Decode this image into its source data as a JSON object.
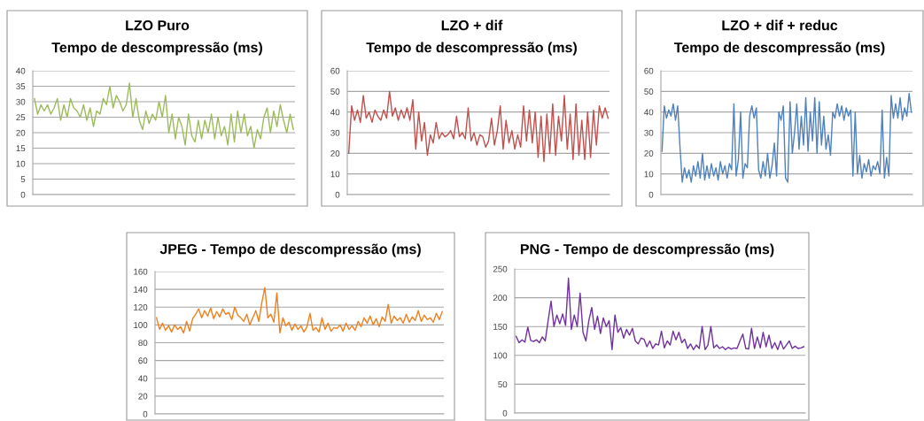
{
  "chart_data": [
    {
      "type": "line",
      "title": "LZO Puro",
      "subtitle": "Tempo de descompressão (ms)",
      "grid": "y",
      "legend": false,
      "ylim": [
        0,
        40
      ],
      "yticks": [
        0,
        5,
        10,
        15,
        20,
        25,
        30,
        35,
        40
      ],
      "categories": [
        null,
        null,
        null,
        null,
        null,
        null,
        null,
        null,
        null,
        null,
        null,
        null,
        null,
        null,
        null,
        null,
        null,
        null,
        null,
        null,
        null,
        null,
        null,
        null,
        null,
        null,
        null,
        null,
        null,
        null,
        null,
        null,
        null,
        null,
        null,
        null,
        null,
        null,
        null,
        null,
        null,
        null,
        null,
        null,
        null,
        null,
        null,
        null,
        null,
        null,
        null,
        null,
        null,
        null,
        null,
        null,
        null,
        null,
        null,
        null,
        null,
        null,
        null,
        null,
        null,
        null,
        null,
        null,
        null,
        null,
        null,
        null,
        null,
        null,
        null,
        null,
        null,
        null,
        null,
        null
      ],
      "series": [
        {
          "color": "#9bbb59",
          "values": [
            31,
            26,
            29,
            27,
            29,
            26,
            28,
            31,
            24,
            29,
            25,
            31,
            28,
            27,
            25,
            29,
            24,
            28,
            22,
            27,
            26,
            31,
            29,
            35,
            28,
            32,
            30,
            27,
            29,
            36,
            25,
            31,
            24,
            21,
            27,
            23,
            26,
            24,
            30,
            25,
            32,
            20,
            26,
            18,
            25,
            22,
            16,
            26,
            19,
            17,
            24,
            18,
            24,
            20,
            26,
            18,
            25,
            19,
            22,
            16,
            26,
            17,
            27,
            20,
            26,
            19,
            22,
            15,
            21,
            18,
            25,
            28,
            20,
            27,
            22,
            29,
            24,
            20,
            26,
            21
          ]
        }
      ]
    },
    {
      "type": "line",
      "title": "LZO + dif",
      "subtitle": "Tempo de descompressão (ms)",
      "grid": "y",
      "legend": false,
      "ylim": [
        0,
        60
      ],
      "yticks": [
        0,
        10,
        20,
        30,
        40,
        50,
        60
      ],
      "categories": [
        null,
        null,
        null,
        null,
        null,
        null,
        null,
        null,
        null,
        null,
        null,
        null,
        null,
        null,
        null,
        null,
        null,
        null,
        null,
        null,
        null,
        null,
        null,
        null,
        null,
        null,
        null,
        null,
        null,
        null,
        null,
        null,
        null,
        null,
        null,
        null,
        null,
        null,
        null,
        null,
        null,
        null,
        null,
        null,
        null,
        null,
        null,
        null,
        null,
        null,
        null,
        null,
        null,
        null,
        null,
        null,
        null,
        null,
        null,
        null,
        null,
        null,
        null,
        null,
        null,
        null,
        null,
        null,
        null,
        null,
        null,
        null,
        null,
        null,
        null,
        null,
        null,
        null,
        null,
        null,
        null,
        null,
        null,
        null,
        null,
        null,
        null,
        null,
        null,
        null
      ],
      "series": [
        {
          "color": "#c0504d",
          "values": [
            20,
            43,
            36,
            41,
            35,
            48,
            37,
            40,
            35,
            41,
            38,
            36,
            41,
            37,
            50,
            38,
            42,
            36,
            41,
            37,
            42,
            36,
            46,
            22,
            40,
            26,
            35,
            19,
            29,
            25,
            35,
            27,
            30,
            28,
            29,
            31,
            27,
            38,
            28,
            30,
            27,
            42,
            26,
            30,
            24,
            29,
            28,
            23,
            26,
            37,
            24,
            31,
            43,
            22,
            36,
            25,
            31,
            22,
            29,
            23,
            43,
            26,
            41,
            25,
            40,
            18,
            38,
            16,
            39,
            20,
            44,
            19,
            38,
            26,
            48,
            22,
            39,
            17,
            44,
            19,
            36,
            17,
            40,
            18,
            41,
            24,
            43,
            37,
            42,
            37
          ]
        }
      ]
    },
    {
      "type": "line",
      "title": "LZO + dif + reduc",
      "subtitle": "Tempo de descompressão (ms)",
      "grid": "y",
      "legend": false,
      "ylim": [
        0,
        60
      ],
      "yticks": [
        0,
        10,
        20,
        30,
        40,
        50,
        60
      ],
      "categories": [
        null,
        null,
        null,
        null,
        null,
        null,
        null,
        null,
        null,
        null,
        null,
        null,
        null,
        null,
        null,
        null,
        null,
        null,
        null,
        null,
        null,
        null,
        null,
        null,
        null,
        null,
        null,
        null,
        null,
        null,
        null,
        null,
        null,
        null,
        null,
        null,
        null,
        null,
        null,
        null,
        null,
        null,
        null,
        null,
        null,
        null,
        null,
        null,
        null,
        null,
        null,
        null,
        null,
        null,
        null,
        null,
        null,
        null,
        null,
        null,
        null,
        null,
        null,
        null,
        null,
        null,
        null,
        null,
        null,
        null,
        null,
        null,
        null,
        null,
        null,
        null,
        null,
        null,
        null,
        null,
        null,
        null,
        null,
        null,
        null,
        null,
        null,
        null,
        null,
        null,
        null,
        null,
        null,
        null,
        null,
        null,
        null,
        null,
        null,
        null,
        null,
        null,
        null,
        null,
        null,
        null,
        null,
        null,
        null,
        null,
        null,
        null
      ],
      "series": [
        {
          "color": "#4f81bd",
          "values": [
            21,
            43,
            37,
            41,
            38,
            44,
            36,
            43,
            23,
            6,
            13,
            8,
            12,
            6,
            14,
            9,
            16,
            8,
            20,
            7,
            14,
            8,
            15,
            9,
            13,
            7,
            16,
            10,
            14,
            8,
            15,
            12,
            44,
            9,
            17,
            40,
            8,
            15,
            13,
            38,
            43,
            37,
            42,
            12,
            8,
            16,
            9,
            20,
            8,
            14,
            25,
            9,
            40,
            36,
            43,
            8,
            6,
            45,
            20,
            30,
            44,
            22,
            38,
            24,
            47,
            21,
            40,
            26,
            47,
            20,
            45,
            24,
            38,
            22,
            29,
            19,
            40,
            37,
            44,
            38,
            43,
            36,
            42,
            38,
            41,
            9,
            40,
            10,
            19,
            8,
            15,
            11,
            17,
            9,
            14,
            12,
            16,
            10,
            41,
            8,
            18,
            9,
            48,
            37,
            44,
            37,
            47,
            36,
            42,
            38,
            49,
            40
          ]
        }
      ]
    },
    {
      "type": "line",
      "title": "JPEG - Tempo de descompressão (ms)",
      "grid": "y",
      "legend": false,
      "ylim": [
        0,
        160
      ],
      "yticks": [
        0,
        20,
        40,
        60,
        80,
        100,
        120,
        140,
        160
      ],
      "categories": [
        null,
        null,
        null,
        null,
        null,
        null,
        null,
        null,
        null,
        null,
        null,
        null,
        null,
        null,
        null,
        null,
        null,
        null,
        null,
        null,
        null,
        null,
        null,
        null,
        null,
        null,
        null,
        null,
        null,
        null,
        null,
        null,
        null,
        null,
        null,
        null,
        null,
        null,
        null,
        null,
        null,
        null,
        null,
        null,
        null,
        null,
        null,
        null,
        null,
        null,
        null,
        null,
        null,
        null,
        null,
        null,
        null,
        null,
        null,
        null,
        null,
        null,
        null,
        null,
        null,
        null,
        null,
        null,
        null,
        null,
        null,
        null,
        null,
        null,
        null,
        null,
        null,
        null,
        null,
        null,
        null,
        null,
        null,
        null,
        null,
        null,
        null,
        null,
        null,
        null,
        null,
        null,
        null,
        null,
        null,
        null
      ],
      "series": [
        {
          "color": "#f07f1d",
          "values": [
            108,
            95,
            102,
            94,
            99,
            92,
            100,
            95,
            98,
            91,
            104,
            93,
            107,
            112,
            118,
            108,
            116,
            110,
            119,
            107,
            115,
            109,
            118,
            112,
            114,
            106,
            120,
            111,
            108,
            104,
            112,
            100,
            108,
            116,
            104,
            125,
            142,
            108,
            112,
            103,
            136,
            91,
            108,
            99,
            103,
            94,
            101,
            95,
            99,
            92,
            98,
            113,
            94,
            97,
            92,
            108,
            95,
            102,
            93,
            97,
            96,
            100,
            93,
            102,
            95,
            99,
            94,
            104,
            98,
            108,
            102,
            110,
            100,
            107,
            98,
            109,
            104,
            123,
            102,
            110,
            105,
            108,
            102,
            112,
            103,
            109,
            105,
            116,
            104,
            111,
            106,
            108,
            103,
            113,
            106,
            115
          ]
        }
      ]
    },
    {
      "type": "line",
      "title": "PNG - Tempo de descompressão (ms)",
      "grid": "y",
      "legend": false,
      "ylim": [
        0,
        250
      ],
      "yticks": [
        0,
        50,
        100,
        150,
        200,
        250
      ],
      "categories": [
        null,
        null,
        null,
        null,
        null,
        null,
        null,
        null,
        null,
        null,
        null,
        null,
        null,
        null,
        null,
        null,
        null,
        null,
        null,
        null,
        null,
        null,
        null,
        null,
        null,
        null,
        null,
        null,
        null,
        null,
        null,
        null,
        null,
        null,
        null,
        null,
        null,
        null,
        null,
        null,
        null,
        null,
        null,
        null,
        null,
        null,
        null,
        null,
        null,
        null,
        null,
        null,
        null,
        null,
        null,
        null,
        null,
        null,
        null,
        null,
        null,
        null,
        null,
        null,
        null,
        null,
        null,
        null,
        null,
        null,
        null,
        null,
        null,
        null,
        null,
        null,
        null,
        null,
        null,
        null,
        null,
        null,
        null,
        null,
        null,
        null,
        null,
        null,
        null,
        null,
        null,
        null,
        null,
        null,
        null,
        null,
        null,
        null,
        null,
        null
      ],
      "series": [
        {
          "color": "#7030a0",
          "values": [
            133,
            122,
            127,
            123,
            149,
            126,
            124,
            127,
            122,
            132,
            125,
            160,
            194,
            150,
            170,
            155,
            172,
            152,
            234,
            145,
            170,
            150,
            208,
            140,
            125,
            160,
            183,
            145,
            168,
            138,
            165,
            150,
            160,
            110,
            170,
            140,
            148,
            130,
            145,
            135,
            147,
            125,
            120,
            130,
            128,
            115,
            125,
            112,
            120,
            118,
            142,
            113,
            125,
            118,
            142,
            127,
            140,
            122,
            128,
            112,
            120,
            110,
            118,
            112,
            150,
            110,
            118,
            150,
            113,
            118,
            112,
            115,
            110,
            114,
            111,
            113,
            112,
            125,
            137,
            112,
            111,
            147,
            112,
            132,
            113,
            140,
            115,
            135,
            112,
            122,
            110,
            125,
            111,
            118,
            125,
            112,
            116,
            112,
            113,
            115
          ]
        }
      ]
    }
  ]
}
